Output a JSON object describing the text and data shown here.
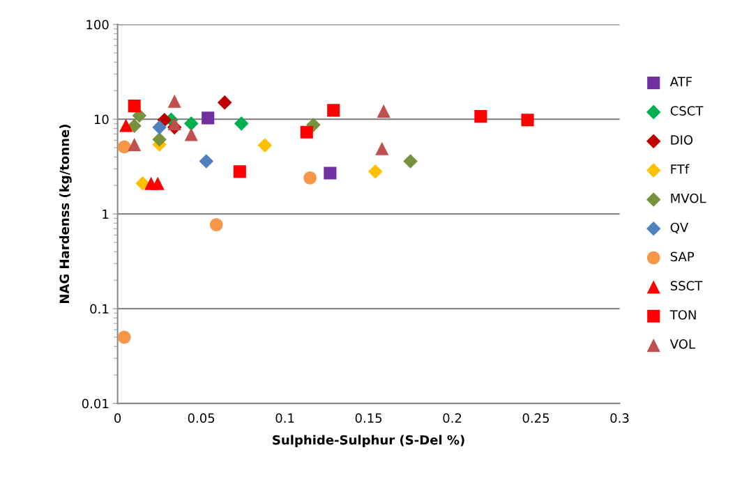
{
  "chart_data": {
    "type": "scatter",
    "xlabel": "Sulphide-Sulphur (S-Del %)",
    "ylabel": "NAG Hardenss (kg/tonne)",
    "log": "y",
    "grid": "y",
    "legend": "right",
    "xlim": [
      0,
      0.3
    ],
    "xticks": [
      0,
      0.05,
      0.1,
      0.15,
      0.2,
      0.25,
      0.3
    ],
    "ylim": [
      0.01,
      100
    ],
    "yticks": [
      0.01,
      0.1,
      1,
      10,
      100
    ],
    "series": [
      {
        "name": "ATF",
        "color": "#7030a0",
        "marker": "square",
        "x": [
          0.054,
          0.127
        ],
        "values": [
          10.3,
          2.7
        ]
      },
      {
        "name": "CSCT",
        "color": "#00b050",
        "marker": "diamond",
        "x": [
          0.032,
          0.044,
          0.074
        ],
        "values": [
          9.9,
          9.0,
          9.0
        ]
      },
      {
        "name": "DIO",
        "color": "#c00000",
        "marker": "diamond",
        "x": [
          0.028,
          0.034,
          0.064
        ],
        "values": [
          9.8,
          8.2,
          15
        ]
      },
      {
        "name": "FTf",
        "color": "#ffc000",
        "marker": "diamond",
        "x": [
          0.015,
          0.025,
          0.088,
          0.154
        ],
        "values": [
          2.1,
          5.4,
          5.3,
          2.8
        ]
      },
      {
        "name": "MVOL",
        "color": "#76923c",
        "marker": "diamond",
        "x": [
          0.01,
          0.013,
          0.025,
          0.117,
          0.175
        ],
        "values": [
          8.5,
          10.9,
          6.1,
          8.7,
          3.6
        ]
      },
      {
        "name": "QV",
        "color": "#4f81bd",
        "marker": "diamond",
        "x": [
          0.025,
          0.053
        ],
        "values": [
          8.2,
          3.6
        ]
      },
      {
        "name": "SAP",
        "color": "#f79646",
        "marker": "circle",
        "x": [
          0.004,
          0.004,
          0.059,
          0.115
        ],
        "values": [
          0.05,
          5.1,
          0.77,
          2.4
        ]
      },
      {
        "name": "SSCT",
        "color": "#ff0000",
        "marker": "triangle",
        "x": [
          0.005,
          0.02,
          0.024
        ],
        "values": [
          8.6,
          2.1,
          2.1
        ]
      },
      {
        "name": "TON",
        "color": "#ff0000",
        "marker": "square",
        "x": [
          0.01,
          0.073,
          0.113,
          0.129,
          0.217,
          0.245
        ],
        "values": [
          13.8,
          2.8,
          7.3,
          12.4,
          10.7,
          9.8
        ]
      },
      {
        "name": "VOL",
        "color": "#c0504d",
        "marker": "triangle",
        "x": [
          0.01,
          0.034,
          0.034,
          0.044,
          0.158,
          0.159
        ],
        "values": [
          5.4,
          15.5,
          9.0,
          6.9,
          4.9,
          12.2
        ]
      }
    ]
  }
}
